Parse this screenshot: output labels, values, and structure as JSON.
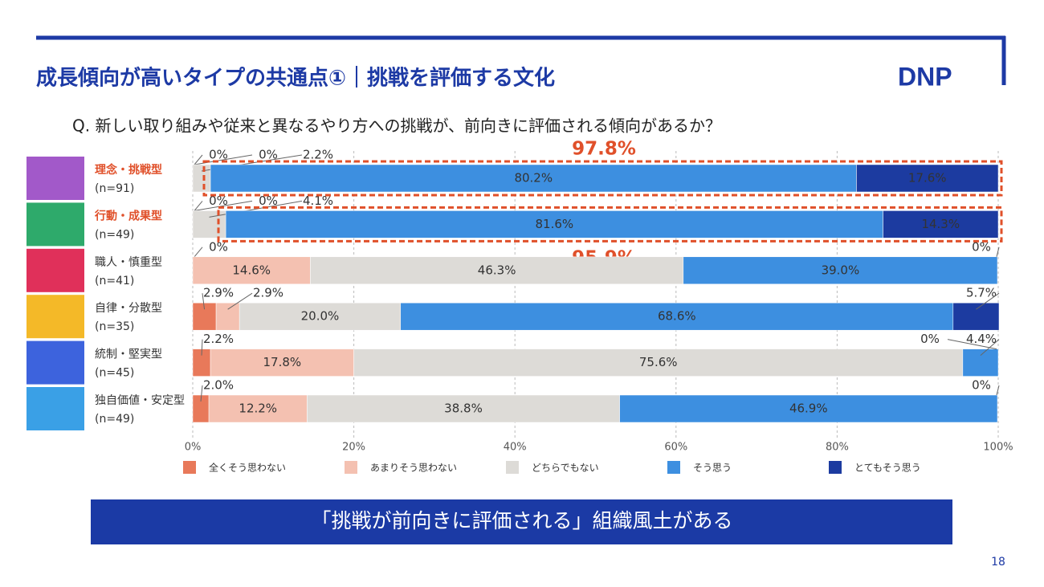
{
  "header": {
    "title": "成長傾向が高いタイプの共通点①｜挑戦を評価する文化",
    "logo": "DNP"
  },
  "question": "Q. 新しい取り組みや従来と異なるやり方への挑戦が、前向きに評価される傾向があるか？",
  "chart_data": {
    "type": "stacked-bar-horizontal",
    "categories": [
      "理念・挑戦型",
      "行動・成果型",
      "職人・慎重型",
      "自律・分散型",
      "統制・堅実型",
      "独自価値・安定型"
    ],
    "sample_sizes": [
      "(n=91)",
      "(n=49)",
      "(n=41)",
      "(n=35)",
      "(n=45)",
      "(n=49)"
    ],
    "series": [
      {
        "name": "全くそう思わない",
        "color": "#e8795a",
        "values": [
          0,
          0,
          0,
          2.9,
          2.2,
          2.0
        ],
        "value_labels": [
          "0%",
          "0%",
          "0%",
          "2.9%",
          "2.2%",
          "2.0%"
        ]
      },
      {
        "name": "あまりそう思わない",
        "color": "#f4c1b1",
        "values": [
          0,
          0,
          14.6,
          2.9,
          17.8,
          12.2
        ],
        "value_labels": [
          "0%",
          "0%",
          "14.6%",
          "2.9%",
          "17.8%",
          "12.2%"
        ]
      },
      {
        "name": "どちらでもない",
        "color": "#dddbd7",
        "values": [
          2.2,
          4.1,
          46.3,
          20.0,
          75.6,
          38.8
        ],
        "value_labels": [
          "2.2%",
          "4.1%",
          "46.3%",
          "20.0%",
          "75.6%",
          "38.8%"
        ]
      },
      {
        "name": "そう思う",
        "color": "#3d8fe0",
        "values": [
          80.2,
          81.6,
          39.0,
          68.6,
          4.4,
          46.9
        ],
        "value_labels": [
          "80.2%",
          "81.6%",
          "39.0%",
          "68.6%",
          "4.4%",
          "46.9%"
        ]
      },
      {
        "name": "とてもそう思う",
        "color": "#1c3ba0",
        "values": [
          17.6,
          14.3,
          0,
          5.7,
          0,
          0
        ],
        "value_labels": [
          "17.6%",
          "14.3%",
          "0%",
          "5.7%",
          "0%",
          "0%"
        ]
      }
    ],
    "xlim": [
      0,
      100
    ],
    "xticks": [
      {
        "value": 0,
        "label": "0%"
      },
      {
        "value": 20,
        "label": "20%"
      },
      {
        "value": 40,
        "label": "40%"
      },
      {
        "value": 60,
        "label": "60%"
      },
      {
        "value": 80,
        "label": "80%"
      },
      {
        "value": 100,
        "label": "100%"
      }
    ],
    "grid": true,
    "annotations": [
      "97.8%",
      "95.9%"
    ]
  },
  "banner": "「挑戦が前向きに評価される」組織風土がある",
  "page_number": "18"
}
